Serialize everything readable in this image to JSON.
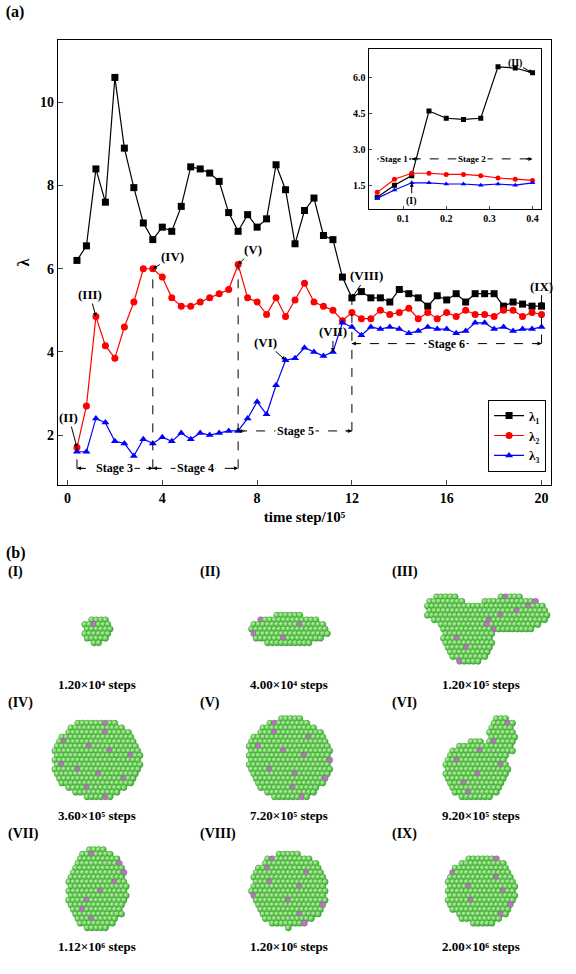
{
  "chart_data": [
    {
      "type": "line",
      "title": "(a)",
      "x_label": "time step/10⁵",
      "y_label": "λ",
      "x": [
        0.4,
        0.8,
        1.2,
        1.6,
        2.0,
        2.4,
        2.8,
        3.2,
        3.6,
        4.0,
        4.4,
        4.8,
        5.2,
        5.6,
        6.0,
        6.4,
        6.8,
        7.2,
        7.6,
        8.0,
        8.4,
        8.8,
        9.2,
        9.6,
        10.0,
        10.4,
        10.8,
        11.2,
        11.6,
        12.0,
        12.4,
        12.8,
        13.2,
        13.6,
        14.0,
        14.4,
        14.8,
        15.2,
        15.6,
        16.0,
        16.4,
        16.8,
        17.2,
        17.6,
        18.0,
        18.4,
        18.8,
        19.2,
        19.6,
        20.0
      ],
      "xlim": [
        -0.4,
        20.4
      ],
      "xticks": [
        0,
        4,
        8,
        12,
        16,
        20
      ],
      "ylim": [
        0.8,
        11.5
      ],
      "yticks": [
        2,
        4,
        6,
        8,
        10
      ],
      "legend": "lower right",
      "series": [
        {
          "name": "λ₁",
          "color": "#000000",
          "marker": "square",
          "values": [
            6.2,
            6.55,
            8.4,
            7.6,
            10.6,
            8.9,
            7.95,
            7.1,
            6.7,
            7.0,
            6.9,
            7.5,
            8.45,
            8.4,
            8.3,
            8.1,
            7.35,
            6.9,
            7.3,
            7.0,
            7.2,
            8.5,
            7.9,
            6.6,
            7.4,
            7.7,
            6.8,
            6.7,
            5.8,
            5.3,
            5.45,
            5.3,
            5.3,
            5.2,
            5.5,
            5.4,
            5.3,
            5.1,
            5.35,
            5.25,
            5.4,
            5.2,
            5.4,
            5.4,
            5.4,
            5.1,
            5.2,
            5.15,
            5.1,
            5.1
          ]
        },
        {
          "name": "λ₂",
          "color": "#ff0000",
          "marker": "circle",
          "values": [
            1.7,
            2.7,
            4.85,
            4.15,
            3.85,
            4.6,
            5.2,
            6.0,
            6.0,
            5.8,
            5.3,
            5.1,
            5.1,
            5.2,
            5.3,
            5.4,
            5.5,
            6.1,
            5.3,
            5.2,
            4.9,
            5.3,
            4.85,
            5.25,
            5.65,
            5.2,
            5.1,
            5.0,
            4.75,
            4.95,
            4.8,
            4.8,
            5.0,
            4.9,
            4.95,
            5.05,
            4.8,
            4.95,
            4.8,
            4.95,
            4.85,
            5.0,
            4.9,
            4.9,
            4.85,
            5.0,
            5.0,
            4.85,
            4.95,
            4.9
          ]
        },
        {
          "name": "λ₃",
          "color": "#0000ff",
          "marker": "triangle-up",
          "values": [
            1.6,
            1.6,
            2.4,
            2.3,
            1.85,
            1.8,
            1.5,
            1.9,
            1.8,
            1.95,
            1.85,
            2.05,
            1.9,
            2.05,
            2.0,
            2.05,
            2.1,
            2.1,
            2.4,
            2.8,
            2.5,
            3.2,
            3.8,
            3.85,
            4.1,
            4.0,
            3.9,
            4.0,
            4.7,
            4.6,
            4.4,
            4.6,
            4.55,
            4.6,
            4.55,
            4.45,
            4.5,
            4.6,
            4.55,
            4.55,
            4.45,
            4.5,
            4.7,
            4.7,
            4.55,
            4.6,
            4.5,
            4.55,
            4.55,
            4.6
          ]
        }
      ],
      "annotations": [
        {
          "text": "(II)",
          "x": 0.4,
          "y": 1.7
        },
        {
          "text": "(III)",
          "x": 1.2,
          "y": 4.85
        },
        {
          "text": "(IV)",
          "x": 3.6,
          "y": 6.0
        },
        {
          "text": "(V)",
          "x": 7.2,
          "y": 6.1
        },
        {
          "text": "(VI)",
          "x": 9.2,
          "y": 3.8
        },
        {
          "text": "(VII)",
          "x": 11.2,
          "y": 4.0
        },
        {
          "text": "(VIII)",
          "x": 12.0,
          "y": 5.3
        },
        {
          "text": "(IX)",
          "x": 20.0,
          "y": 5.1
        }
      ],
      "stages": [
        {
          "text": "Stage 3",
          "x0": 0.4,
          "x1": 3.6,
          "y": 1.2
        },
        {
          "text": "Stage 4",
          "x0": 3.6,
          "x1": 7.2,
          "y": 1.2
        },
        {
          "text": "Stage 5",
          "x0": 7.2,
          "x1": 12.0,
          "y": 2.1
        },
        {
          "text": "Stage 6",
          "x0": 12.0,
          "x1": 20.0,
          "y": 4.2
        }
      ]
    },
    {
      "type": "line",
      "x": [
        0.04,
        0.08,
        0.12,
        0.16,
        0.2,
        0.24,
        0.28,
        0.32,
        0.36,
        0.4
      ],
      "xlim": [
        0.02,
        0.42
      ],
      "xticks": [
        0.1,
        0.2,
        0.3,
        0.4
      ],
      "ylim": [
        0.5,
        7.2
      ],
      "yticks": [
        1.5,
        {
          "value": 3,
          "label": "3.0"
        },
        4.5,
        {
          "value": 6,
          "label": "6.0"
        }
      ],
      "series": [
        {
          "color": "#000000",
          "marker": "square",
          "values": [
            1.0,
            1.5,
            1.9,
            4.6,
            4.3,
            4.25,
            4.3,
            6.45,
            6.4,
            6.2
          ]
        },
        {
          "color": "#ff0000",
          "marker": "circle",
          "values": [
            1.2,
            1.75,
            2.0,
            2.0,
            1.95,
            1.95,
            1.9,
            1.8,
            1.75,
            1.7
          ]
        },
        {
          "color": "#0000ff",
          "marker": "triangle-up",
          "values": [
            0.95,
            1.3,
            1.6,
            1.6,
            1.55,
            1.55,
            1.5,
            1.55,
            1.5,
            1.6
          ]
        }
      ],
      "annotations": [
        {
          "text": "(I)",
          "x": 0.12,
          "y": 1.6
        },
        {
          "text": "(II)",
          "x": 0.4,
          "y": 6.2
        }
      ],
      "stages": [
        {
          "text": "Stage 1",
          "x0": 0.04,
          "x1": 0.12,
          "y": 2.6
        },
        {
          "text": "Stage 2",
          "x0": 0.12,
          "x1": 0.4,
          "y": 2.6
        }
      ]
    }
  ],
  "snapshots": {
    "title": "(b)",
    "items": [
      {
        "label": "(I)",
        "caption": "1.20×10⁴ steps"
      },
      {
        "label": "(II)",
        "caption": "4.00×10⁴ steps"
      },
      {
        "label": "(III)",
        "caption": "1.20×10⁵ steps"
      },
      {
        "label": "(IV)",
        "caption": "3.60×10⁵ steps"
      },
      {
        "label": "(V)",
        "caption": "7.20×10⁵ steps"
      },
      {
        "label": "(VI)",
        "caption": "9.20×10⁵ steps"
      },
      {
        "label": "(VII)",
        "caption": "1.12×10⁶ steps"
      },
      {
        "label": "(VIII)",
        "caption": "1.20×10⁶ steps"
      },
      {
        "label": "(IX)",
        "caption": "2.00×10⁶ steps"
      }
    ]
  }
}
